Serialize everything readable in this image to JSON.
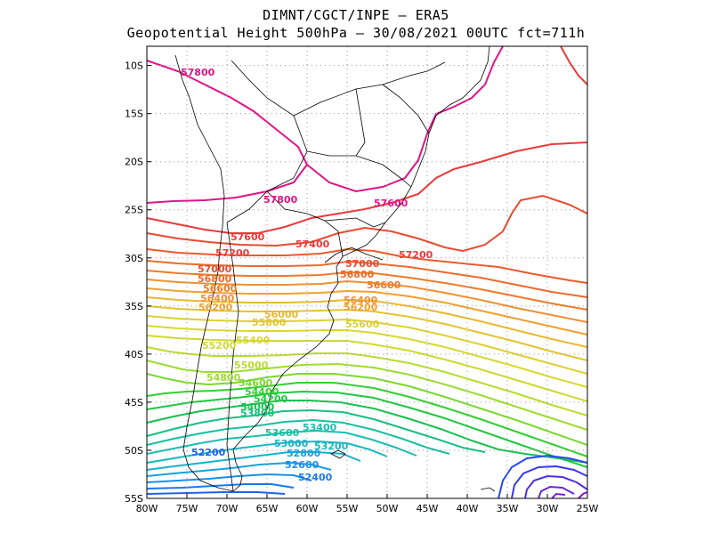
{
  "header": {
    "line1": "DIMNT/CGCT/INPE –  ERA5",
    "line2": "Geopotential Height 500hPa –  30/08/2021 00UTC fct=711h"
  },
  "axes": {
    "x_ticks": [
      "80W",
      "75W",
      "70W",
      "65W",
      "60W",
      "55W",
      "50W",
      "45W",
      "40W",
      "35W",
      "30W",
      "25W"
    ],
    "y_ticks": [
      "10S",
      "15S",
      "20S",
      "25S",
      "30S",
      "35S",
      "40S",
      "45S",
      "50S",
      "55S"
    ],
    "lon_range": [
      -80,
      -25
    ],
    "lat_range": [
      -55,
      -8
    ]
  },
  "contour_labels": [
    {
      "text": "57800",
      "color": "#e01487"
    },
    {
      "text": "57800",
      "color": "#e01487"
    },
    {
      "text": "57600",
      "color": "#e01487"
    },
    {
      "text": "57600",
      "color": "#e83a3a"
    },
    {
      "text": "57400",
      "color": "#e83a3a"
    },
    {
      "text": "57200",
      "color": "#e83a3a"
    },
    {
      "text": "57200",
      "color": "#e83a3a"
    },
    {
      "text": "57000",
      "color": "#e84a30"
    },
    {
      "text": "57000",
      "color": "#e84a30"
    },
    {
      "text": "56800",
      "color": "#ee6a28"
    },
    {
      "text": "56800",
      "color": "#ee6a28"
    },
    {
      "text": "56600",
      "color": "#ee7a28"
    },
    {
      "text": "56600",
      "color": "#ee7a28"
    },
    {
      "text": "56400",
      "color": "#f09030"
    },
    {
      "text": "56400",
      "color": "#f09030"
    },
    {
      "text": "56200",
      "color": "#f0a030"
    },
    {
      "text": "56200",
      "color": "#f0a030"
    },
    {
      "text": "56000",
      "color": "#eab830"
    },
    {
      "text": "55800",
      "color": "#e2c430"
    },
    {
      "text": "55600",
      "color": "#dcd030"
    },
    {
      "text": "55400",
      "color": "#d8d830"
    },
    {
      "text": "55200",
      "color": "#d0d830"
    },
    {
      "text": "55000",
      "color": "#b8dc30"
    },
    {
      "text": "54800",
      "color": "#9cdc30"
    },
    {
      "text": "54600",
      "color": "#7ad830"
    },
    {
      "text": "54400",
      "color": "#30d030"
    },
    {
      "text": "54200",
      "color": "#20c840"
    },
    {
      "text": "54000",
      "color": "#18c050"
    },
    {
      "text": "53800",
      "color": "#18c080"
    },
    {
      "text": "53600",
      "color": "#18c0a0"
    },
    {
      "text": "53400",
      "color": "#18c0b0"
    },
    {
      "text": "53200",
      "color": "#18b8c0"
    },
    {
      "text": "53000",
      "color": "#18b0d0"
    },
    {
      "text": "52800",
      "color": "#18a0e0"
    },
    {
      "text": "52600",
      "color": "#1890e8"
    },
    {
      "text": "52400",
      "color": "#1878f0"
    },
    {
      "text": "52200",
      "color": "#2060f0"
    },
    {
      "text": "53800",
      "color": "#18c080"
    }
  ]
}
